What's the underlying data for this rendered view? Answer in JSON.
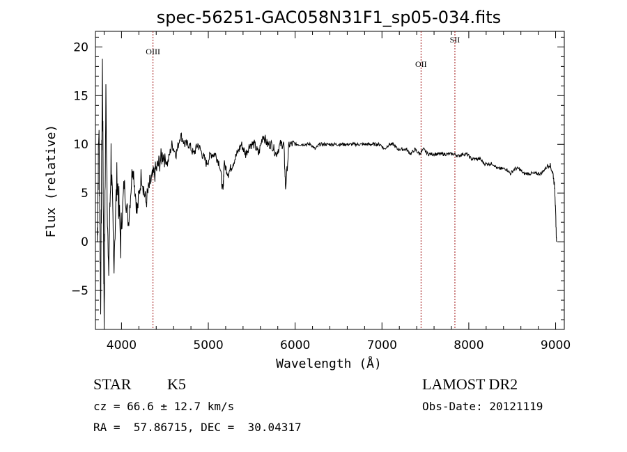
{
  "chart_data": {
    "type": "line",
    "title": "spec-56251-GAC058N31F1_sp05-034.fits",
    "xlabel": "Wavelength (Å)",
    "ylabel": "Flux (relative)",
    "xlim": [
      3700,
      9100
    ],
    "ylim": [
      -9,
      21.6
    ],
    "xticks": [
      "4000",
      "5000",
      "6000",
      "7000",
      "8000",
      "9000"
    ],
    "yticks": [
      "20",
      "15",
      "10",
      "5",
      "0",
      "−5"
    ],
    "grid": false,
    "line_color": "#000000",
    "marker_color": "#a01010",
    "lines": [
      {
        "name": "OIII",
        "x": 4363
      },
      {
        "name": "OII",
        "x": 7450
      },
      {
        "name": "SII",
        "x": 7840
      }
    ],
    "series": [
      {
        "x": [
          3720,
          3740,
          3760,
          3780,
          3800,
          3820,
          3850,
          3880,
          3910,
          3950,
          3990,
          4030,
          4080,
          4130,
          4180,
          4230,
          4280,
          4330,
          4380,
          4430,
          4480,
          4530,
          4580,
          4630,
          4680,
          4730,
          4780,
          4830,
          4880,
          4930,
          4980,
          5030,
          5080,
          5130,
          5170,
          5180,
          5230,
          5280,
          5330,
          5380,
          5430,
          5480,
          5530,
          5580,
          5630,
          5680,
          5730,
          5780,
          5830,
          5870,
          5890,
          5930,
          5980,
          6030,
          6080,
          6130,
          6180,
          6230,
          6280,
          6330,
          6380,
          6430,
          6480,
          6530,
          6580,
          6630,
          6680,
          6730,
          6780,
          6830,
          6880,
          6930,
          6980,
          7030,
          7080,
          7130,
          7180,
          7230,
          7280,
          7330,
          7380,
          7430,
          7480,
          7530,
          7580,
          7630,
          7680,
          7730,
          7780,
          7830,
          7880,
          7930,
          7980,
          8030,
          8080,
          8130,
          8180,
          8230,
          8280,
          8330,
          8380,
          8430,
          8480,
          8530,
          8580,
          8630,
          8680,
          8730,
          8780,
          8830,
          8880,
          8930,
          8970,
          8990,
          9000,
          9010
        ],
        "values": [
          0,
          12,
          -6,
          18,
          -8,
          15,
          -4,
          9,
          -2,
          7,
          0,
          6,
          2,
          8,
          3,
          7,
          4,
          6,
          7,
          8,
          9,
          8,
          10,
          9,
          11,
          10,
          10,
          9,
          10,
          9,
          8,
          9,
          9,
          8,
          5,
          8,
          7,
          8,
          9,
          10,
          9,
          10,
          10,
          9,
          11,
          10,
          10,
          9,
          10,
          10,
          5.5,
          10,
          10,
          10,
          10,
          10,
          10,
          9.5,
          10,
          10,
          10,
          10,
          10,
          10,
          10,
          10,
          10,
          10,
          10,
          10,
          10,
          10,
          10,
          9.5,
          10,
          10,
          9.5,
          9.5,
          9.5,
          9,
          9.5,
          9,
          9.5,
          9,
          9,
          9,
          9,
          9,
          9,
          9,
          8.8,
          9,
          9,
          8.5,
          8.5,
          8.5,
          8,
          8,
          8,
          7.5,
          7.5,
          7.5,
          7,
          7.5,
          7.5,
          7,
          7,
          7,
          7,
          7,
          7.5,
          8,
          7,
          5.5,
          3,
          0
        ]
      }
    ]
  },
  "info": {
    "class_label": "STAR",
    "subclass": "K5",
    "survey": "LAMOST DR2",
    "cz": "cz = 66.6 ± 12.7 km/s",
    "obs_date": "Obs-Date: 20121119",
    "radec": "RA =  57.86715, DEC =  30.04317"
  }
}
